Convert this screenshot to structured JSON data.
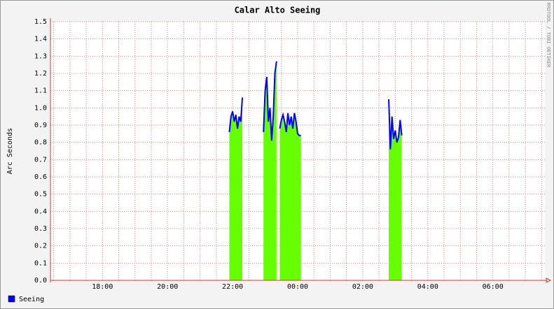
{
  "chart_data": {
    "type": "area-line",
    "title": "Calar Alto Seeing",
    "ylabel": "Arc Seconds",
    "watermark": "RRDTOOL / TOBI OETIKER",
    "x": [
      21.9,
      21.95,
      22.0,
      22.05,
      22.1,
      22.15,
      22.2,
      22.25,
      22.3,
      22.6,
      22.95,
      23.0,
      23.05,
      23.1,
      23.15,
      23.2,
      23.25,
      23.3,
      23.35,
      23.4,
      23.45,
      23.5,
      23.55,
      23.6,
      23.65,
      23.7,
      23.75,
      23.8,
      23.85,
      23.9,
      23.95,
      24.0,
      24.05,
      24.1,
      25.0,
      26.8,
      26.85,
      26.9,
      26.95,
      27.0,
      27.05,
      27.1,
      27.15,
      27.2
    ],
    "series": [
      {
        "name": "Seeing",
        "color": "#0000ff",
        "fill_color": "#66ff00",
        "values": [
          0.86,
          0.95,
          0.98,
          0.92,
          0.96,
          0.88,
          0.95,
          0.92,
          1.06,
          null,
          0.86,
          1.1,
          1.18,
          0.92,
          1.0,
          0.81,
          0.95,
          1.2,
          1.27,
          null,
          0.88,
          0.93,
          0.96,
          0.92,
          0.86,
          0.97,
          0.9,
          0.95,
          0.88,
          0.97,
          0.92,
          0.85,
          0.84,
          0.84,
          null,
          1.05,
          0.76,
          0.95,
          0.82,
          0.87,
          0.8,
          0.83,
          0.93,
          0.84
        ]
      }
    ],
    "xlim": [
      16.4,
      31.6
    ],
    "xticks": [
      {
        "value": 18,
        "label": "18:00"
      },
      {
        "value": 20,
        "label": "20:00"
      },
      {
        "value": 22,
        "label": "22:00"
      },
      {
        "value": 24,
        "label": "00:00"
      },
      {
        "value": 26,
        "label": "02:00"
      },
      {
        "value": 28,
        "label": "04:00"
      },
      {
        "value": 30,
        "label": "06:00"
      }
    ],
    "xminorticks": [
      16.5,
      17,
      17.5,
      18.5,
      19,
      19.5,
      20.5,
      21,
      21.5,
      22.5,
      23,
      23.5,
      24.5,
      25,
      25.5,
      26.5,
      27,
      27.5,
      28.5,
      29,
      29.5,
      30.5,
      31,
      31.5
    ],
    "ylim": [
      0,
      1.5
    ],
    "yticks": [
      {
        "value": 0,
        "label": "0.0"
      },
      0.1,
      0.2,
      0.3,
      0.4,
      0.5,
      0.6,
      0.7,
      0.8,
      0.9,
      {
        "value": 1,
        "label": "1.0"
      },
      1.1,
      1.2,
      1.3,
      1.4,
      1.5
    ],
    "grid": true
  }
}
